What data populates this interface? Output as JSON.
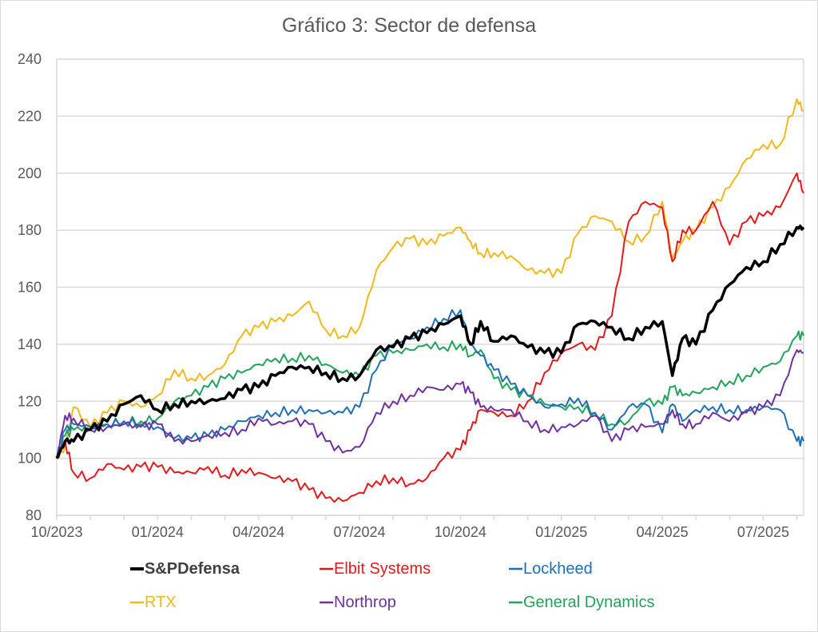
{
  "chart_data": {
    "type": "line",
    "title": "Gráfico 3: Sector de defensa",
    "xlabel": "",
    "ylabel": "",
    "ylim": [
      80,
      240
    ],
    "yticks": [
      "80",
      "100",
      "120",
      "140",
      "160",
      "180",
      "200",
      "220",
      "240"
    ],
    "xlim_months": [
      0,
      22.2
    ],
    "xtick_labels": [
      "10/2023",
      "01/2024",
      "04/2024",
      "07/2024",
      "10/2024",
      "01/2025",
      "04/2025",
      "07/2025"
    ],
    "xtick_months": [
      0,
      3,
      6,
      9,
      12,
      15,
      18,
      21
    ],
    "x_unit": "months since 10/2023",
    "grid": "horizontal",
    "legend_position": "bottom",
    "x": [
      0,
      0.25,
      0.5,
      1,
      1.5,
      2,
      2.5,
      3,
      3.5,
      4,
      4.5,
      5,
      5.5,
      6,
      6.5,
      7,
      7.5,
      8,
      8.5,
      9,
      9.5,
      10,
      10.5,
      11,
      11.5,
      12,
      12.3,
      12.6,
      13,
      13.5,
      14,
      14.5,
      15,
      15.5,
      16,
      16.5,
      17,
      17.5,
      18,
      18.3,
      18.6,
      19,
      19.5,
      20,
      20.5,
      21,
      21.5,
      22,
      22.2
    ],
    "series": [
      {
        "name": "S&PDefensa",
        "color": "#000000",
        "bold": true,
        "values": [
          100,
          106,
          106,
          110,
          113,
          119,
          122,
          117,
          119,
          120,
          120,
          121,
          124,
          125,
          129,
          132,
          132,
          130,
          128,
          129,
          138,
          139,
          142,
          144,
          147,
          150,
          140,
          148,
          141,
          143,
          139,
          137,
          137,
          147,
          148,
          146,
          142,
          146,
          148,
          129,
          142,
          140,
          152,
          161,
          167,
          169,
          175,
          181,
          181
        ]
      },
      {
        "name": "Elbit Systems",
        "color": "#e31a1c",
        "bold": false,
        "values": [
          100,
          106,
          95,
          93,
          98,
          96,
          97,
          97,
          95,
          95,
          97,
          94,
          96,
          95,
          93,
          92,
          89,
          86,
          85,
          88,
          92,
          93,
          91,
          93,
          100,
          103,
          110,
          117,
          116,
          115,
          120,
          130,
          137,
          140,
          138,
          150,
          183,
          190,
          188,
          169,
          180,
          180,
          190,
          175,
          183,
          185,
          188,
          200,
          193
        ]
      },
      {
        "name": "Lockheed",
        "color": "#1f6fb4",
        "bold": false,
        "values": [
          100,
          110,
          112,
          111,
          112,
          113,
          112,
          111,
          107,
          107,
          108,
          110,
          113,
          115,
          116,
          117,
          117,
          116,
          116,
          118,
          131,
          140,
          142,
          146,
          149,
          152,
          140,
          136,
          131,
          126,
          122,
          118,
          119,
          121,
          116,
          110,
          118,
          119,
          109,
          119,
          113,
          117,
          118,
          117,
          117,
          118,
          117,
          106,
          106
        ]
      },
      {
        "name": "RTX",
        "color": "#f0b81a",
        "bold": false,
        "values": [
          100,
          104,
          118,
          111,
          116,
          120,
          118,
          122,
          131,
          128,
          129,
          133,
          143,
          146,
          148,
          150,
          155,
          145,
          143,
          146,
          166,
          174,
          177,
          175,
          178,
          181,
          176,
          172,
          172,
          171,
          166,
          165,
          165,
          179,
          185,
          183,
          176,
          178,
          190,
          170,
          176,
          180,
          188,
          195,
          205,
          210,
          210,
          226,
          222
        ]
      },
      {
        "name": "Northrop",
        "color": "#7030a0",
        "bold": false,
        "values": [
          100,
          115,
          114,
          110,
          111,
          112,
          111,
          112,
          106,
          106,
          108,
          109,
          110,
          114,
          112,
          113,
          112,
          106,
          102,
          104,
          116,
          120,
          122,
          125,
          124,
          126,
          123,
          118,
          117,
          117,
          113,
          110,
          111,
          112,
          115,
          106,
          110,
          111,
          112,
          117,
          112,
          112,
          116,
          113,
          116,
          118,
          122,
          138,
          137
        ]
      },
      {
        "name": "General Dynamics",
        "color": "#21a35a",
        "bold": false,
        "values": [
          100,
          108,
          110,
          111,
          112,
          113,
          113,
          114,
          120,
          122,
          125,
          128,
          130,
          133,
          135,
          135,
          136,
          133,
          130,
          129,
          136,
          137,
          138,
          140,
          139,
          140,
          136,
          138,
          128,
          124,
          122,
          119,
          118,
          118,
          116,
          112,
          113,
          120,
          119,
          125,
          122,
          123,
          125,
          127,
          129,
          132,
          134,
          143,
          143
        ]
      }
    ]
  }
}
